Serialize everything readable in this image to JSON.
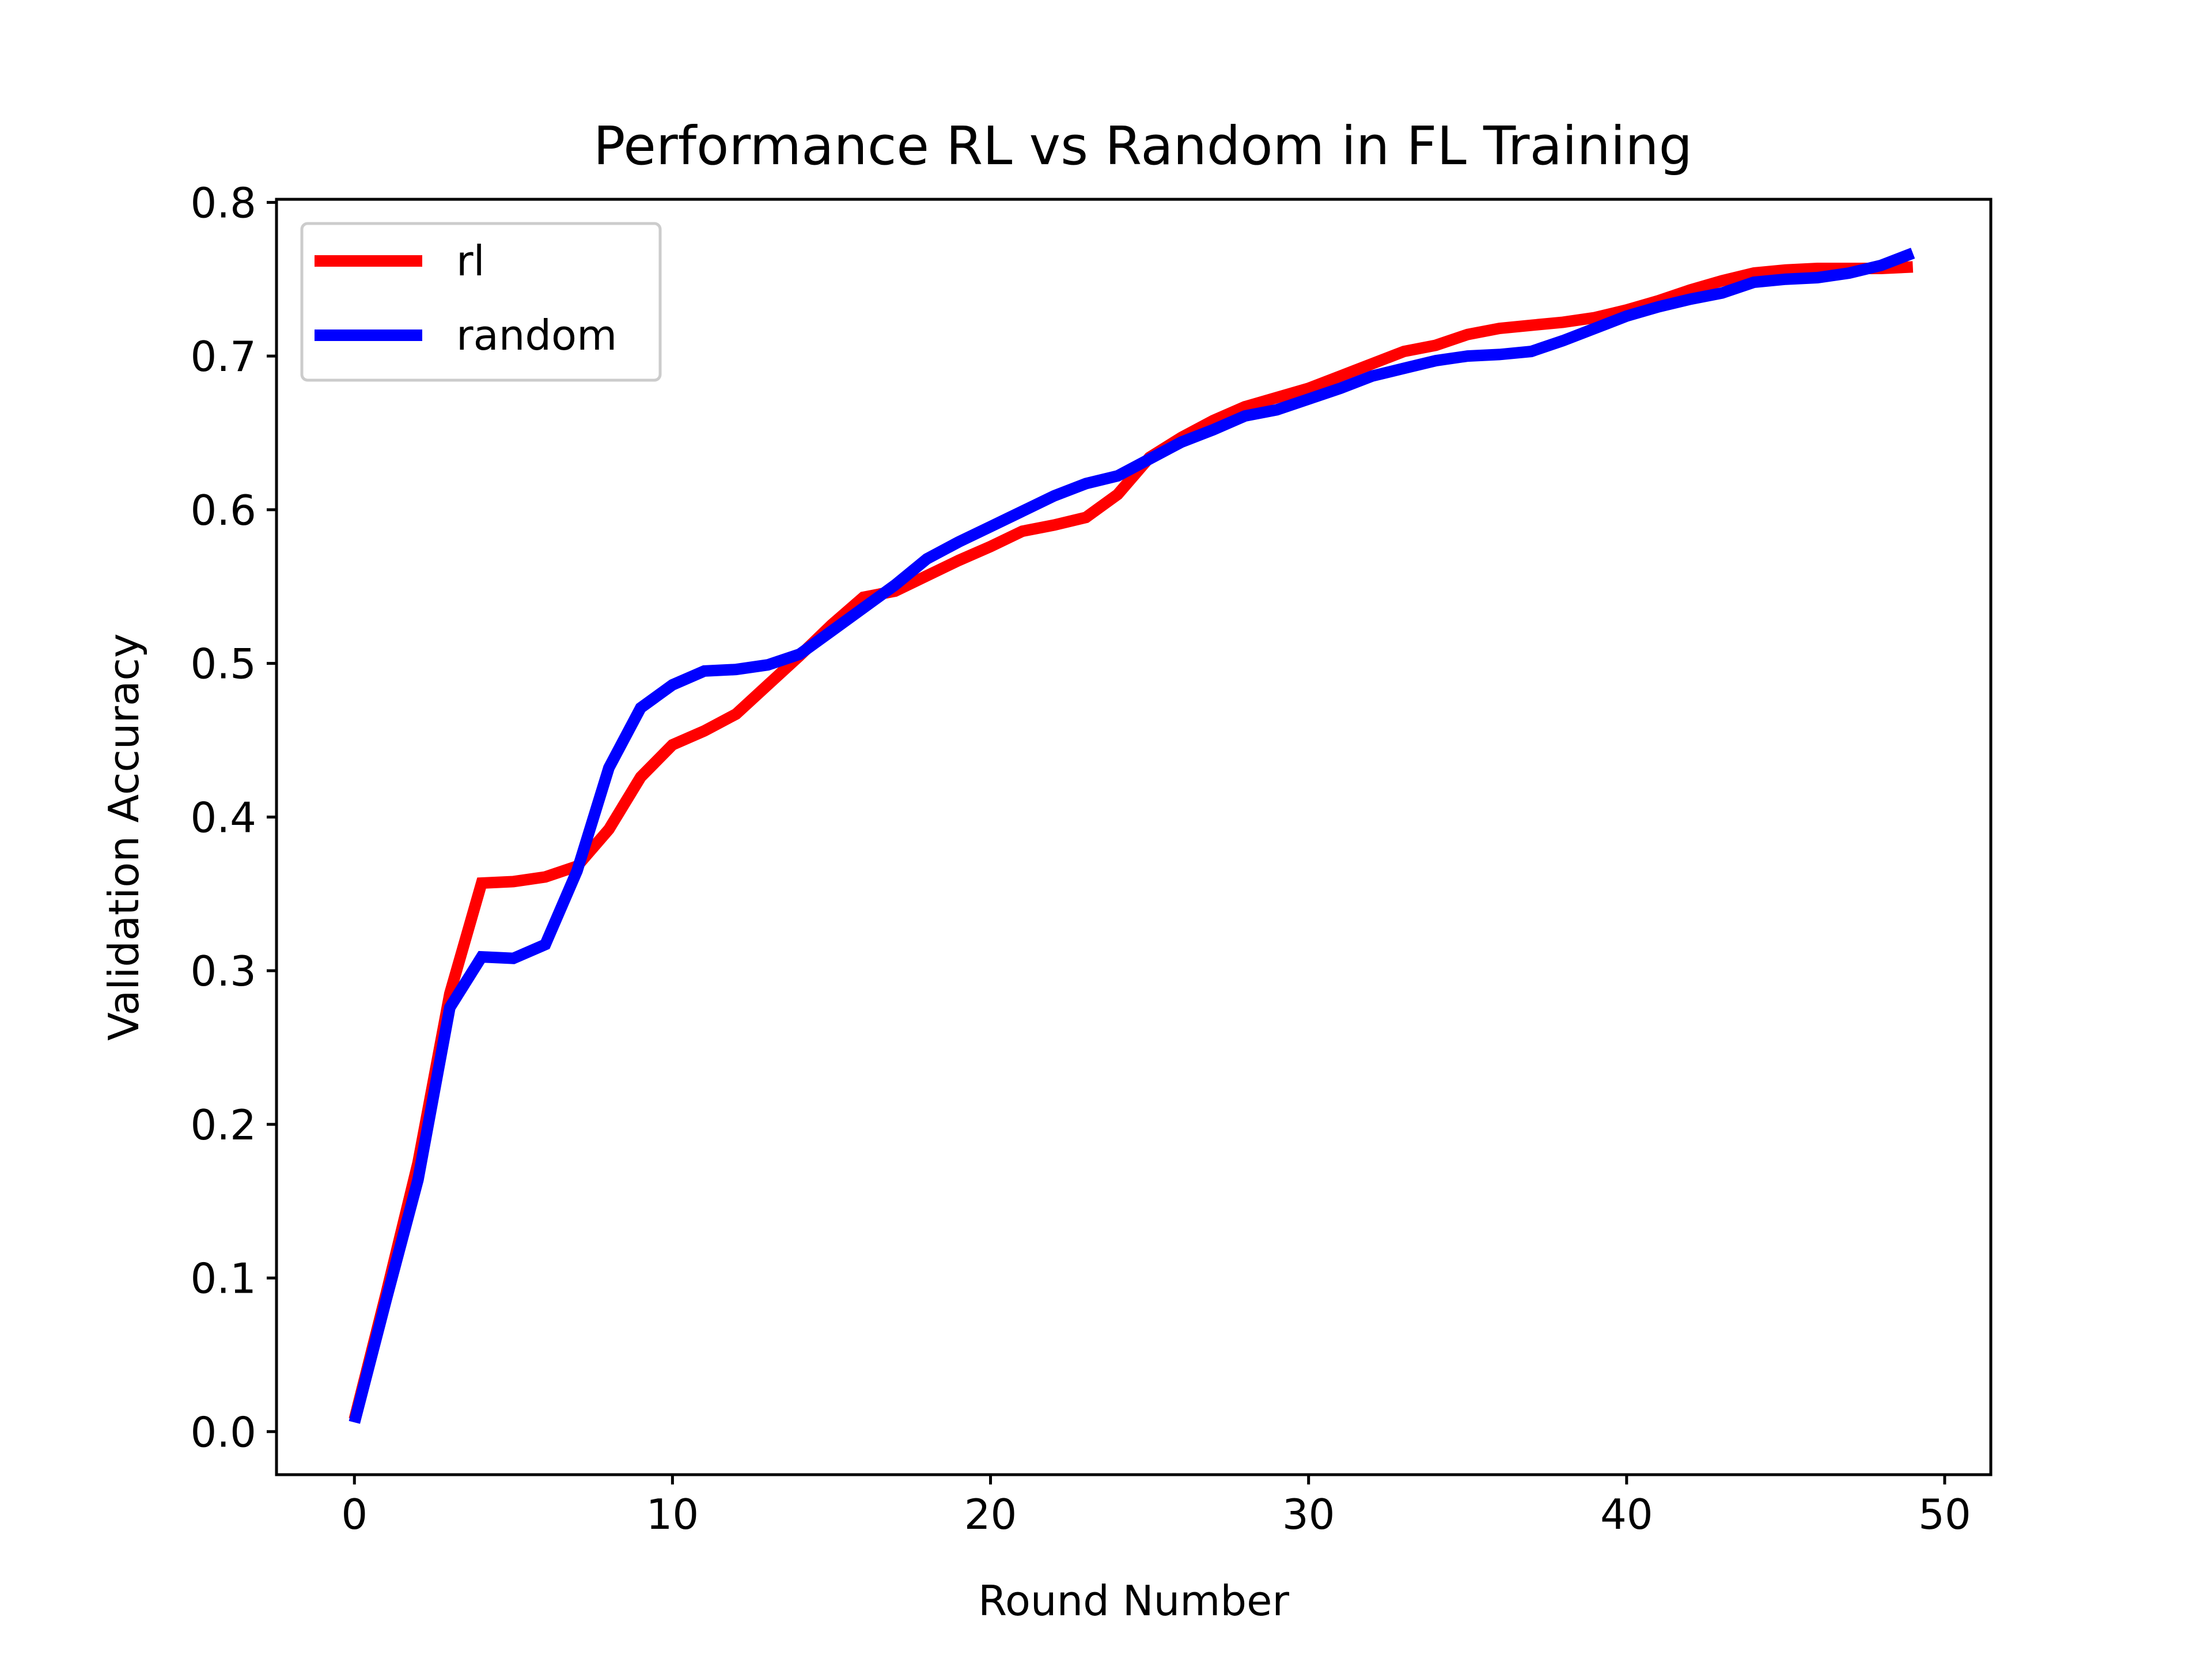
{
  "chart_data": {
    "type": "line",
    "title": "Performance RL vs Random in FL Training",
    "xlabel": "Round Number",
    "ylabel": "Validation Accuracy",
    "xlim": [
      -2.45,
      51.45
    ],
    "ylim": [
      -0.028,
      0.802
    ],
    "xticks": [
      0,
      10,
      20,
      30,
      40,
      50
    ],
    "xtick_labels": [
      "0",
      "10",
      "20",
      "30",
      "40",
      "50"
    ],
    "yticks": [
      0.0,
      0.1,
      0.2,
      0.3,
      0.4,
      0.5,
      0.6,
      0.7,
      0.8
    ],
    "ytick_labels": [
      "0.0",
      "0.1",
      "0.2",
      "0.3",
      "0.4",
      "0.5",
      "0.6",
      "0.7",
      "0.8"
    ],
    "grid": false,
    "legend_position": "top-left",
    "x": [
      0,
      1,
      2,
      3,
      4,
      5,
      6,
      7,
      8,
      9,
      10,
      11,
      12,
      13,
      14,
      15,
      16,
      17,
      18,
      19,
      20,
      21,
      22,
      23,
      24,
      25,
      26,
      27,
      28,
      29,
      30,
      31,
      32,
      33,
      34,
      35,
      36,
      37,
      38,
      39,
      40,
      41,
      42,
      43,
      44,
      45,
      46,
      47,
      48,
      49
    ],
    "series": [
      {
        "name": "rl",
        "color": "#ff0000",
        "values": [
          0.008,
          0.09,
          0.175,
          0.285,
          0.357,
          0.358,
          0.361,
          0.368,
          0.392,
          0.426,
          0.447,
          0.456,
          0.467,
          0.486,
          0.505,
          0.525,
          0.543,
          0.547,
          0.557,
          0.567,
          0.576,
          0.586,
          0.59,
          0.595,
          0.61,
          0.634,
          0.647,
          0.658,
          0.667,
          0.673,
          0.679,
          0.687,
          0.695,
          0.703,
          0.707,
          0.714,
          0.718,
          0.72,
          0.722,
          0.725,
          0.73,
          0.736,
          0.743,
          0.749,
          0.754,
          0.756,
          0.757,
          0.757,
          0.757,
          0.758
        ]
      },
      {
        "name": "random",
        "color": "#0000ff",
        "values": [
          0.006,
          0.086,
          0.164,
          0.276,
          0.309,
          0.308,
          0.317,
          0.365,
          0.432,
          0.471,
          0.486,
          0.495,
          0.496,
          0.499,
          0.506,
          0.521,
          0.536,
          0.551,
          0.568,
          0.579,
          0.589,
          0.599,
          0.609,
          0.617,
          0.622,
          0.633,
          0.644,
          0.652,
          0.661,
          0.665,
          0.672,
          0.679,
          0.687,
          0.692,
          0.697,
          0.7,
          0.701,
          0.703,
          0.71,
          0.718,
          0.726,
          0.732,
          0.737,
          0.741,
          0.748,
          0.75,
          0.751,
          0.754,
          0.759,
          0.767
        ]
      }
    ]
  }
}
